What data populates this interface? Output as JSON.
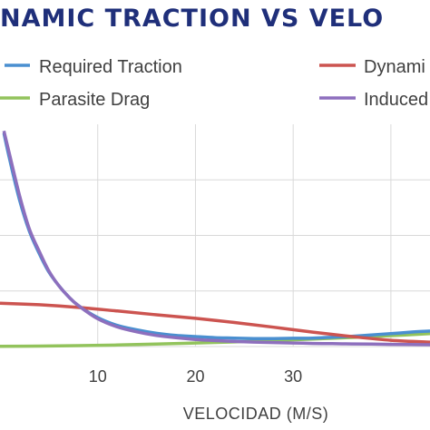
{
  "chart_data": {
    "type": "line",
    "title": "NAMIC TRACTION VS VELO",
    "xlabel": "VELOCIDAD (M/S)",
    "ylabel": "",
    "xlim": [
      0,
      44
    ],
    "ylim": [
      0,
      1
    ],
    "x_ticks": [
      10,
      20,
      30
    ],
    "grid": true,
    "legend_position": "top",
    "series": [
      {
        "name": "Required Traction",
        "color": "#4a8fd0",
        "x": [
          0.4,
          1,
          2,
          3,
          4,
          5,
          6,
          7,
          8,
          10,
          12,
          14,
          16,
          18,
          20,
          22,
          24,
          26,
          28,
          30,
          32,
          34,
          36,
          38,
          40,
          42,
          44
        ],
        "y": [
          0.96,
          0.84,
          0.66,
          0.52,
          0.42,
          0.335,
          0.275,
          0.225,
          0.185,
          0.13,
          0.095,
          0.075,
          0.06,
          0.05,
          0.045,
          0.04,
          0.038,
          0.036,
          0.036,
          0.037,
          0.038,
          0.042,
          0.046,
          0.052,
          0.058,
          0.065,
          0.07
        ]
      },
      {
        "name": "Dynami",
        "color": "#cc5450",
        "x": [
          0,
          4,
          8,
          12,
          16,
          20,
          24,
          28,
          32,
          36,
          40,
          44
        ],
        "y": [
          0.195,
          0.188,
          0.176,
          0.16,
          0.143,
          0.127,
          0.108,
          0.087,
          0.065,
          0.045,
          0.028,
          0.02
        ]
      },
      {
        "name": "Parasite Drag",
        "color": "#92c35c",
        "x": [
          0,
          4,
          8,
          12,
          16,
          20,
          24,
          28,
          32,
          36,
          40,
          44
        ],
        "y": [
          0.001,
          0.002,
          0.004,
          0.007,
          0.011,
          0.016,
          0.021,
          0.027,
          0.034,
          0.041,
          0.049,
          0.058
        ]
      },
      {
        "name": "Induced",
        "color": "#8d6fbd",
        "x": [
          0.4,
          1,
          2,
          3,
          4,
          5,
          6,
          7,
          8,
          10,
          12,
          14,
          16,
          18,
          20,
          22,
          24,
          26,
          28,
          30,
          32,
          34,
          36,
          38,
          40,
          42,
          44
        ],
        "y": [
          0.97,
          0.86,
          0.68,
          0.53,
          0.43,
          0.34,
          0.275,
          0.225,
          0.185,
          0.125,
          0.088,
          0.066,
          0.05,
          0.04,
          0.032,
          0.027,
          0.023,
          0.02,
          0.018,
          0.016,
          0.014,
          0.013,
          0.012,
          0.011,
          0.01,
          0.009,
          0.008
        ]
      }
    ]
  }
}
